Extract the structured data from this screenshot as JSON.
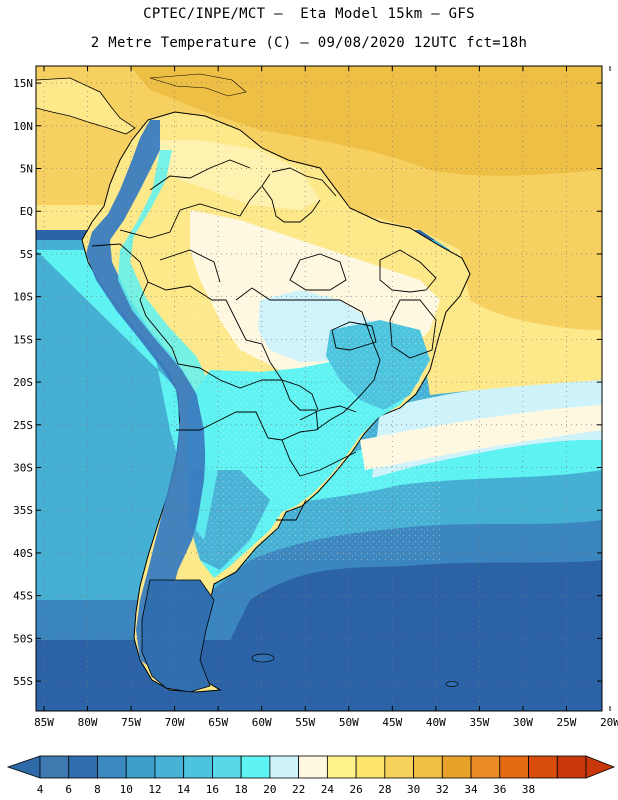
{
  "header": {
    "line1": "CPTEC/INPE/MCT –  Eta Model 15km – GFS",
    "line2": "2 Metre Temperature (C) – 09/08/2020 12UTC fct=18h"
  },
  "axes": {
    "lat_labels": [
      "15N",
      "10N",
      "5N",
      "EQ",
      "5S",
      "10S",
      "15S",
      "20S",
      "25S",
      "30S",
      "35S",
      "40S",
      "45S",
      "50S",
      "55S"
    ],
    "lon_labels": [
      "85W",
      "80W",
      "75W",
      "70W",
      "65W",
      "60W",
      "55W",
      "50W",
      "45W",
      "40W",
      "35W",
      "30W",
      "25W",
      "20W"
    ]
  },
  "colorbar": {
    "labels": [
      "4",
      "6",
      "8",
      "10",
      "12",
      "14",
      "16",
      "18",
      "20",
      "22",
      "24",
      "26",
      "28",
      "30",
      "32",
      "34",
      "36",
      "38"
    ],
    "colors": [
      "#3e7ab0",
      "#2f6fb0",
      "#3c88c0",
      "#3f9fcb",
      "#48b2d6",
      "#4cc4dd",
      "#58d8e8",
      "#5ff4f4",
      "#cff3fb",
      "#fff8e0",
      "#fff48c",
      "#fde46c",
      "#f6d25a",
      "#eebf45",
      "#e8a12b",
      "#e98a24",
      "#e46a14",
      "#d84c0c",
      "#c8380a"
    ],
    "under_color": "#2e6aa8",
    "over_color": "#c8380a"
  },
  "map_colors": {
    "ocean_deep": "#2b63a6",
    "ocean_mid": "#3c86bf",
    "ocean_light": "#46b0d4",
    "cyan": "#5ff2f2",
    "pale_cyan": "#cff3fb",
    "cream": "#fff8e0",
    "yellow": "#fde88a",
    "warm": "#f6d060",
    "orange": "#eebf45",
    "andes": "#3a7cc0"
  }
}
